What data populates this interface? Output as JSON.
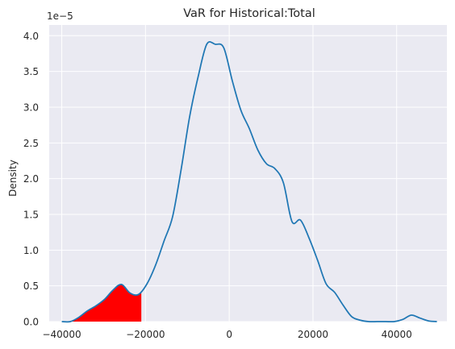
{
  "chart_data": {
    "type": "line",
    "title": "VaR for Historical:Total",
    "xlabel": "",
    "ylabel": "Density",
    "y_scale_label": "1e−5",
    "xlim": [
      -43000,
      52000
    ],
    "ylim": [
      0,
      4.15
    ],
    "x_ticks": [
      -40000,
      -20000,
      0,
      20000,
      40000
    ],
    "x_tick_labels": [
      "−40000",
      "−20000",
      "0",
      "20000",
      "40000"
    ],
    "y_ticks": [
      0,
      0.5,
      1.0,
      1.5,
      2.0,
      2.5,
      3.0,
      3.5,
      4.0
    ],
    "y_tick_labels": [
      "0.0",
      "0.5",
      "1.0",
      "1.5",
      "2.0",
      "2.5",
      "3.0",
      "3.5",
      "4.0"
    ],
    "grid": true,
    "series": [
      {
        "color": "#1f77b4",
        "x": [
          -39992,
          -37956,
          -35920,
          -33883,
          -31847,
          -29811,
          -27775,
          -25739,
          -23702,
          -21666,
          -19630,
          -17594,
          -15558,
          -13522,
          -11485,
          -9449,
          -7413,
          -5377,
          -3341,
          -1305,
          731,
          2768,
          4804,
          6840,
          8876,
          10912,
          12949,
          14985,
          17021,
          19057,
          21093,
          23129,
          25166,
          27202,
          29238,
          31274,
          33310,
          35347,
          37383,
          39419,
          41455,
          43491,
          45527,
          47564,
          49600
        ],
        "y": [
          0.0,
          0.0,
          0.06,
          0.15,
          0.22,
          0.31,
          0.44,
          0.52,
          0.4,
          0.38,
          0.53,
          0.79,
          1.13,
          1.47,
          2.13,
          2.87,
          3.43,
          3.88,
          3.88,
          3.83,
          3.37,
          2.96,
          2.7,
          2.4,
          2.21,
          2.14,
          1.94,
          1.4,
          1.42,
          1.17,
          0.86,
          0.53,
          0.41,
          0.23,
          0.07,
          0.02,
          0.0,
          0.0,
          0.0,
          0.0,
          0.03,
          0.09,
          0.05,
          0.01,
          0.0
        ]
      }
    ],
    "var_fill": {
      "color": "#ff0000",
      "x_from": -39992,
      "x_to": -21000
    }
  }
}
